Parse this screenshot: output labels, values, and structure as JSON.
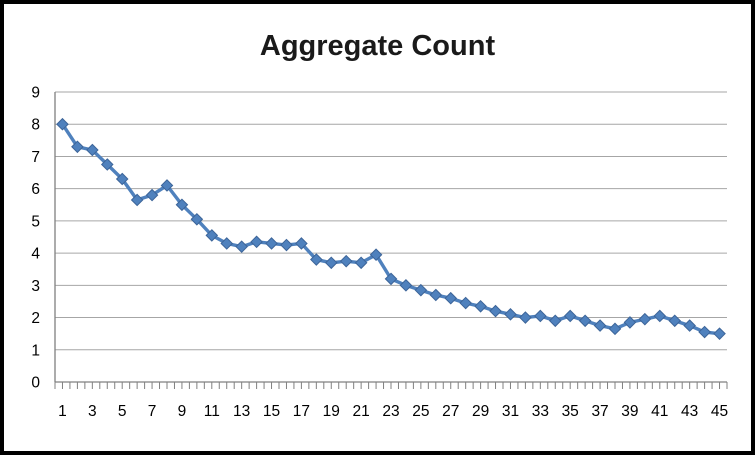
{
  "frame": {
    "background": "#ffffff",
    "border_color": "#000000"
  },
  "chart_data": {
    "type": "line",
    "title": "Aggregate Count",
    "x": [
      1,
      2,
      3,
      4,
      5,
      6,
      7,
      8,
      9,
      10,
      11,
      12,
      13,
      14,
      15,
      16,
      17,
      18,
      19,
      20,
      21,
      22,
      23,
      24,
      25,
      26,
      27,
      28,
      29,
      30,
      31,
      32,
      33,
      34,
      35,
      36,
      37,
      38,
      39,
      40,
      41,
      42,
      43,
      44,
      45
    ],
    "values": [
      8.0,
      7.3,
      7.2,
      6.75,
      6.3,
      5.65,
      5.8,
      6.1,
      5.5,
      5.05,
      4.55,
      4.3,
      4.2,
      4.35,
      4.3,
      4.25,
      4.3,
      3.8,
      3.7,
      3.75,
      3.7,
      3.95,
      3.2,
      3.0,
      2.85,
      2.7,
      2.6,
      2.45,
      2.35,
      2.2,
      2.1,
      2.0,
      2.05,
      1.9,
      2.05,
      1.9,
      1.75,
      1.65,
      1.85,
      1.95,
      2.05,
      1.9,
      1.75,
      1.55,
      1.5
    ],
    "x_tick_labels": [
      "1",
      "3",
      "5",
      "7",
      "9",
      "11",
      "13",
      "15",
      "17",
      "19",
      "21",
      "23",
      "25",
      "27",
      "29",
      "31",
      "33",
      "35",
      "37",
      "39",
      "41",
      "43",
      "45"
    ],
    "y_tick_labels": [
      "0",
      "1",
      "2",
      "3",
      "4",
      "5",
      "6",
      "7",
      "8",
      "9"
    ],
    "ylim": [
      0,
      9
    ],
    "xlabel": "",
    "ylabel": "",
    "grid": true,
    "legend": "none",
    "marker": "diamond",
    "colors": {
      "series": "#4f81bd",
      "marker_edge": "#3c6498",
      "gridline": "#a6a6a6",
      "axis": "#808080",
      "tick": "#808080",
      "title": "#1a1a1a",
      "tick_label": "#000000"
    }
  }
}
